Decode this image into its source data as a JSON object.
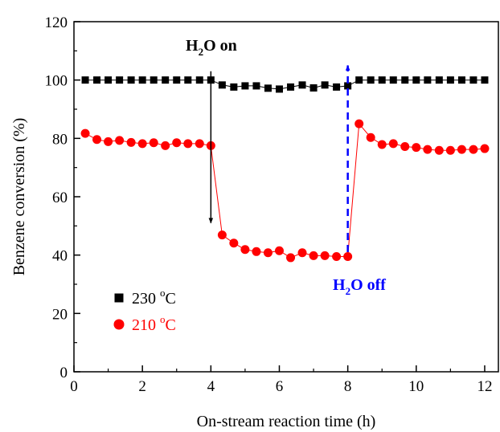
{
  "chart_data": {
    "type": "scatter",
    "xlabel": "On-stream reaction time (h)",
    "ylabel": "Benzene conversion (%)",
    "xlim": [
      0,
      12.4
    ],
    "ylim": [
      0,
      120
    ],
    "xticks": [
      "0",
      "2",
      "4",
      "6",
      "8",
      "10",
      "12"
    ],
    "yticks": [
      "0",
      "20",
      "40",
      "60",
      "80",
      "100",
      "120"
    ],
    "grid": false,
    "legend_position": "bottom-left",
    "series": [
      {
        "name": "230 oC",
        "label_base": "230 ",
        "label_sup": "o",
        "label_unit": "C",
        "marker": "square",
        "color": "#000000",
        "connected": true,
        "points": [
          [
            0.33,
            100
          ],
          [
            0.67,
            100
          ],
          [
            1.0,
            100
          ],
          [
            1.33,
            100
          ],
          [
            1.67,
            100
          ],
          [
            2.0,
            100
          ],
          [
            2.33,
            100
          ],
          [
            2.67,
            100
          ],
          [
            3.0,
            100
          ],
          [
            3.33,
            100
          ],
          [
            3.67,
            100
          ],
          [
            4.0,
            100
          ],
          [
            4.33,
            98.3
          ],
          [
            4.67,
            97.6
          ],
          [
            5.0,
            98.0
          ],
          [
            5.33,
            98.0
          ],
          [
            5.67,
            97.2
          ],
          [
            6.0,
            96.9
          ],
          [
            6.33,
            97.6
          ],
          [
            6.67,
            98.3
          ],
          [
            7.0,
            97.3
          ],
          [
            7.33,
            98.3
          ],
          [
            7.67,
            97.6
          ],
          [
            8.0,
            98.0
          ],
          [
            8.33,
            100
          ],
          [
            8.67,
            100
          ],
          [
            9.0,
            100
          ],
          [
            9.33,
            100
          ],
          [
            9.67,
            100
          ],
          [
            10.0,
            100
          ],
          [
            10.33,
            100
          ],
          [
            10.67,
            100
          ],
          [
            11.0,
            100
          ],
          [
            11.33,
            100
          ],
          [
            11.67,
            100
          ],
          [
            12.0,
            100
          ]
        ]
      },
      {
        "name": "210 oC",
        "label_base": "210 ",
        "label_sup": "o",
        "label_unit": "C",
        "marker": "circle",
        "color": "#ff0000",
        "connected": true,
        "points": [
          [
            0.33,
            81.7
          ],
          [
            0.67,
            79.6
          ],
          [
            1.0,
            78.9
          ],
          [
            1.33,
            79.3
          ],
          [
            1.67,
            78.6
          ],
          [
            2.0,
            78.2
          ],
          [
            2.33,
            78.5
          ],
          [
            2.67,
            77.5
          ],
          [
            3.0,
            78.5
          ],
          [
            3.33,
            78.2
          ],
          [
            3.67,
            78.2
          ],
          [
            4.0,
            77.5
          ],
          [
            4.33,
            46.9
          ],
          [
            4.67,
            44.1
          ],
          [
            5.0,
            41.9
          ],
          [
            5.33,
            41.2
          ],
          [
            5.67,
            40.8
          ],
          [
            6.0,
            41.5
          ],
          [
            6.33,
            39.1
          ],
          [
            6.67,
            40.8
          ],
          [
            7.0,
            39.8
          ],
          [
            7.33,
            39.8
          ],
          [
            7.67,
            39.5
          ],
          [
            8.0,
            39.5
          ],
          [
            8.33,
            85.0
          ],
          [
            8.67,
            80.3
          ],
          [
            9.0,
            77.9
          ],
          [
            9.33,
            78.2
          ],
          [
            9.67,
            77.2
          ],
          [
            10.0,
            76.9
          ],
          [
            10.33,
            76.2
          ],
          [
            10.67,
            75.9
          ],
          [
            11.0,
            75.9
          ],
          [
            11.33,
            76.2
          ],
          [
            11.67,
            76.2
          ],
          [
            12.0,
            76.5
          ]
        ]
      }
    ],
    "annotations": [
      {
        "id": "h2o-on",
        "text_main": "H",
        "text_sub": "2",
        "text_rest": "O on",
        "color": "#000000",
        "arrow_x": 4.0,
        "arrow_from_y": 103,
        "arrow_to_y": 51,
        "arrow_style": "solid"
      },
      {
        "id": "h2o-off",
        "text_main": "H",
        "text_sub": "2",
        "text_rest": "O off",
        "color": "#0000ff",
        "arrow_x": 8.0,
        "arrow_from_y": 41,
        "arrow_to_y": 105,
        "arrow_style": "dashed"
      }
    ]
  }
}
